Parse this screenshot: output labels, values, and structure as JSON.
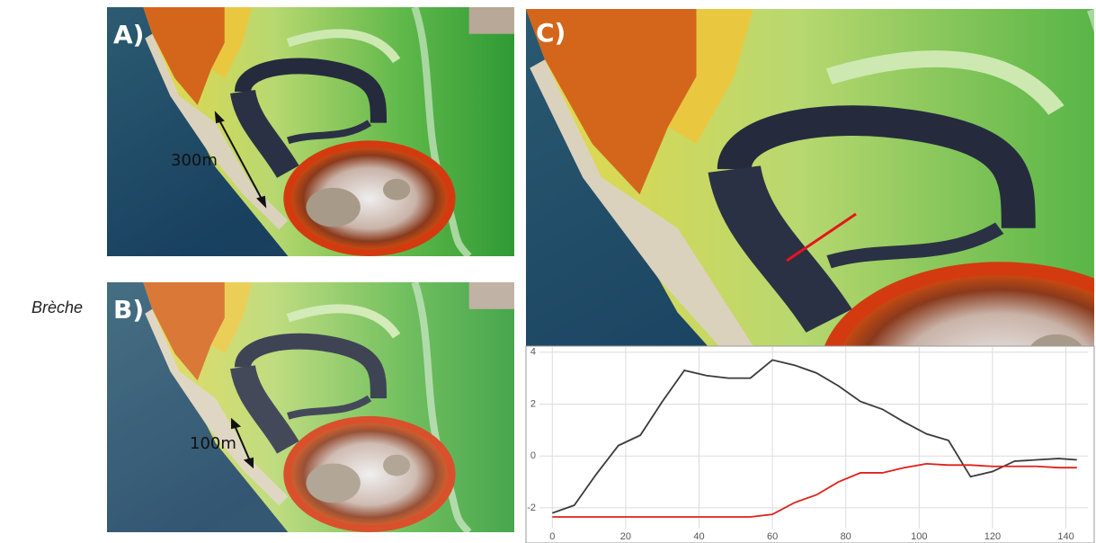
{
  "label": "Brèche",
  "panels": [
    {
      "label": "A)",
      "scale": "300m"
    },
    {
      "label": "B)",
      "scale": "100m"
    },
    {
      "label": "C)"
    }
  ],
  "chart_data": {
    "type": "line",
    "series": [
      {
        "color": "#3a3a3a",
        "x": [
          0,
          6,
          12,
          18,
          24,
          30,
          36,
          42,
          48,
          54,
          60,
          66,
          72,
          78,
          84,
          90,
          96,
          102,
          108,
          114,
          120,
          126,
          132,
          138,
          143
        ],
        "values": [
          -2.2,
          -1.9,
          -0.7,
          0.4,
          0.8,
          2.1,
          3.3,
          3.1,
          3.0,
          3.0,
          3.7,
          3.5,
          3.2,
          2.7,
          2.1,
          1.8,
          1.3,
          0.85,
          0.6,
          -0.8,
          -0.6,
          -0.2,
          -0.15,
          -0.1,
          -0.15
        ]
      },
      {
        "color": "#e0201a",
        "x": [
          0,
          54,
          60,
          66,
          72,
          78,
          84,
          90,
          96,
          102,
          108,
          114,
          120,
          126,
          132,
          138,
          143
        ],
        "values": [
          -2.35,
          -2.35,
          -2.25,
          -1.8,
          -1.5,
          -1.0,
          -0.65,
          -0.65,
          -0.45,
          -0.3,
          -0.35,
          -0.35,
          -0.4,
          -0.4,
          -0.4,
          -0.45,
          -0.45
        ]
      }
    ],
    "xlim": [
      -3.5,
      146
    ],
    "xticks": [
      0,
      20,
      40,
      60,
      80,
      100,
      120,
      140
    ],
    "ylim": [
      -2.8,
      4.2
    ],
    "yticks": [
      -2,
      0,
      2,
      4
    ],
    "grid": true
  }
}
